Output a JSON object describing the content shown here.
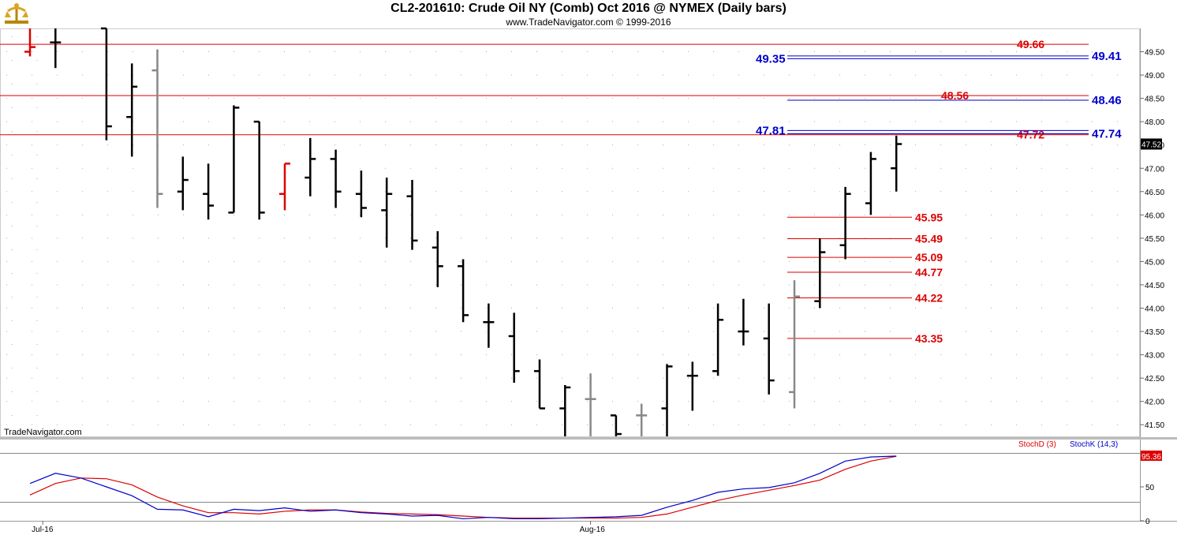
{
  "header": {
    "title": "CL2-201610:  Crude Oil NY (Comb) Oct 2016 @ NYMEX  (Daily bars)",
    "subtitle": "www.TradeNavigator.com © 1999-2016"
  },
  "watermark": "TradeNavigator.com",
  "colors": {
    "red": "#dd0000",
    "blue": "#0000cc",
    "up": "#22cc22",
    "neutral": "#888888",
    "bar": "#000000"
  },
  "chart_data": {
    "type": "bar",
    "price_panel": {
      "ylim": [
        41.25,
        50.0
      ],
      "yticks": [
        "41.50",
        "42.00",
        "42.50",
        "43.00",
        "43.50",
        "44.00",
        "44.50",
        "45.00",
        "45.50",
        "46.00",
        "46.50",
        "47.00",
        "47.50",
        "48.00",
        "48.50",
        "49.00",
        "49.50"
      ],
      "last_price": "47.52",
      "bars": [
        {
          "i": 0,
          "o": 49.5,
          "h": 50.2,
          "l": 49.4,
          "c": 49.6,
          "color": "red"
        },
        {
          "i": 1,
          "o": 49.7,
          "h": 50.2,
          "l": 49.15,
          "c": 49.7,
          "color": "black"
        },
        {
          "i": 3,
          "o": 50.3,
          "h": 50.3,
          "l": 47.6,
          "c": 47.9,
          "color": "black"
        },
        {
          "i": 4,
          "o": 48.1,
          "h": 49.25,
          "l": 47.25,
          "c": 48.75,
          "color": "black"
        },
        {
          "i": 5,
          "o": 49.1,
          "h": 49.55,
          "l": 46.15,
          "c": 46.45,
          "color": "gray"
        },
        {
          "i": 6,
          "o": 46.5,
          "h": 47.25,
          "l": 46.1,
          "c": 46.75,
          "color": "black"
        },
        {
          "i": 7,
          "o": 46.45,
          "h": 47.1,
          "l": 45.9,
          "c": 46.2,
          "color": "black"
        },
        {
          "i": 8,
          "o": 46.05,
          "h": 48.35,
          "l": 46.05,
          "c": 48.3,
          "color": "black"
        },
        {
          "i": 9,
          "o": 48.0,
          "h": 48.0,
          "l": 45.9,
          "c": 46.05,
          "color": "black"
        },
        {
          "i": 10,
          "o": 46.45,
          "h": 47.1,
          "l": 46.1,
          "c": 47.1,
          "color": "red"
        },
        {
          "i": 11,
          "o": 46.8,
          "h": 47.65,
          "l": 46.4,
          "c": 47.2,
          "color": "black"
        },
        {
          "i": 12,
          "o": 47.2,
          "h": 47.4,
          "l": 46.15,
          "c": 46.5,
          "color": "black"
        },
        {
          "i": 13,
          "o": 46.45,
          "h": 46.95,
          "l": 45.95,
          "c": 46.15,
          "color": "black"
        },
        {
          "i": 14,
          "o": 46.1,
          "h": 46.8,
          "l": 45.3,
          "c": 46.45,
          "color": "black"
        },
        {
          "i": 15,
          "o": 46.4,
          "h": 46.75,
          "l": 45.25,
          "c": 45.45,
          "color": "black"
        },
        {
          "i": 16,
          "o": 45.3,
          "h": 45.65,
          "l": 44.45,
          "c": 44.9,
          "color": "black"
        },
        {
          "i": 17,
          "o": 44.9,
          "h": 45.05,
          "l": 43.7,
          "c": 43.85,
          "color": "black"
        },
        {
          "i": 18,
          "o": 43.7,
          "h": 44.1,
          "l": 43.15,
          "c": 43.7,
          "color": "black"
        },
        {
          "i": 19,
          "o": 43.4,
          "h": 43.9,
          "l": 42.4,
          "c": 42.65,
          "color": "black"
        },
        {
          "i": 20,
          "o": 42.65,
          "h": 42.9,
          "l": 41.85,
          "c": 41.85,
          "color": "black"
        },
        {
          "i": 21,
          "o": 41.85,
          "h": 42.35,
          "l": 41.25,
          "c": 42.3,
          "color": "black"
        },
        {
          "i": 22,
          "o": 42.05,
          "h": 42.6,
          "l": 41.25,
          "c": 42.05,
          "color": "gray"
        },
        {
          "i": 23,
          "o": 41.7,
          "h": 41.7,
          "l": 41.25,
          "c": 41.3,
          "color": "black"
        },
        {
          "i": 24,
          "o": 41.7,
          "h": 41.95,
          "l": 41.25,
          "c": 41.7,
          "color": "gray"
        },
        {
          "i": 25,
          "o": 41.85,
          "h": 42.8,
          "l": 41.25,
          "c": 42.75,
          "color": "black"
        },
        {
          "i": 26,
          "o": 42.55,
          "h": 42.85,
          "l": 41.8,
          "c": 42.55,
          "color": "black"
        },
        {
          "i": 27,
          "o": 42.65,
          "h": 44.1,
          "l": 42.55,
          "c": 43.75,
          "color": "black"
        },
        {
          "i": 28,
          "o": 43.5,
          "h": 44.2,
          "l": 43.2,
          "c": 43.5,
          "color": "black"
        },
        {
          "i": 29,
          "o": 43.35,
          "h": 44.1,
          "l": 42.15,
          "c": 42.45,
          "color": "black"
        },
        {
          "i": 30,
          "o": 42.2,
          "h": 44.6,
          "l": 41.85,
          "c": 44.25,
          "color": "gray"
        },
        {
          "i": 31,
          "o": 44.15,
          "h": 45.5,
          "l": 44.0,
          "c": 45.2,
          "color": "black"
        },
        {
          "i": 32,
          "o": 45.35,
          "h": 46.6,
          "l": 45.05,
          "c": 46.45,
          "color": "black"
        },
        {
          "i": 33,
          "o": 46.25,
          "h": 47.35,
          "l": 46.0,
          "c": 47.2,
          "color": "black"
        },
        {
          "i": 34,
          "o": 47.0,
          "h": 47.7,
          "l": 46.5,
          "c": 47.52,
          "color": "black"
        }
      ],
      "levels_red_full": [
        {
          "value": 49.66,
          "label": "49.66"
        },
        {
          "value": 48.56,
          "label": "48.56"
        },
        {
          "value": 47.72,
          "label": "47.72"
        }
      ],
      "levels_blue": [
        {
          "value": 49.41,
          "label": "49.41",
          "left_label": ""
        },
        {
          "value": 49.35,
          "label": "",
          "left_label": "49.35"
        },
        {
          "value": 48.46,
          "label": "48.46",
          "left_label": ""
        },
        {
          "value": 47.81,
          "label": "",
          "left_label": "47.81"
        },
        {
          "value": 47.74,
          "label": "47.74",
          "left_label": ""
        }
      ],
      "levels_red_short": [
        {
          "value": 45.95,
          "label": "45.95"
        },
        {
          "value": 45.49,
          "label": "45.49"
        },
        {
          "value": 45.09,
          "label": "45.09"
        },
        {
          "value": 44.77,
          "label": "44.77"
        },
        {
          "value": 44.22,
          "label": "44.22"
        },
        {
          "value": 43.35,
          "label": "43.35"
        }
      ]
    },
    "stoch_panel": {
      "ylim": [
        0,
        100
      ],
      "yticks": [
        "0",
        "50"
      ],
      "last_value": "95.36",
      "legend": [
        "StochD (3)",
        "StochK (14,3)"
      ],
      "x": [
        0,
        1,
        2,
        3,
        4,
        5,
        6,
        7,
        8,
        9,
        10,
        11,
        12,
        13,
        14,
        15,
        16,
        17,
        18,
        19,
        20,
        21,
        22,
        23,
        24,
        25,
        26,
        27,
        28,
        29,
        30,
        31,
        32,
        33,
        34
      ],
      "series": [
        {
          "name": "StochD (3)",
          "color": "red",
          "values": [
            38,
            55,
            63,
            62,
            53,
            35,
            22,
            12,
            12,
            10,
            14,
            16,
            16,
            13,
            11,
            10,
            9,
            7,
            5,
            4,
            4,
            4,
            4,
            4,
            5,
            10,
            20,
            30,
            38,
            45,
            52,
            60,
            76,
            88,
            95
          ]
        },
        {
          "name": "StochK (14,3)",
          "color": "blue",
          "values": [
            55,
            70,
            63,
            50,
            37,
            17,
            16,
            6,
            17,
            15,
            19,
            14,
            16,
            12,
            10,
            7,
            8,
            3,
            5,
            3,
            3,
            4,
            5,
            6,
            8,
            20,
            30,
            42,
            47,
            49,
            56,
            70,
            88,
            94,
            95.36
          ]
        }
      ]
    },
    "x_labels": [
      {
        "i": 0.5,
        "label": "Jul-16"
      },
      {
        "i": 22,
        "label": "Aug-16"
      }
    ]
  }
}
